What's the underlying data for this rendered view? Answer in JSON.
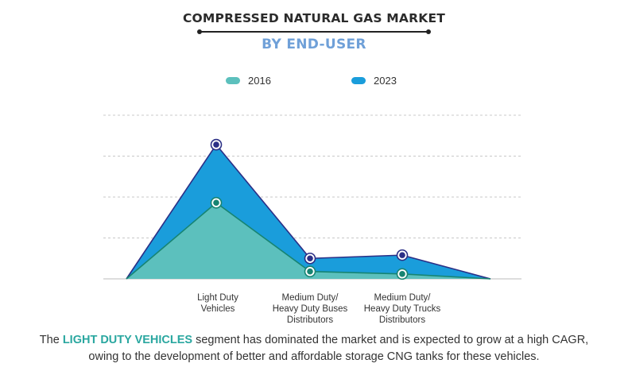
{
  "header": {
    "title": "COMPRESSED NATURAL GAS MARKET",
    "subtitle": "BY END-USER"
  },
  "caption": {
    "prefix": "The ",
    "highlight": "LIGHT DUTY VEHICLES",
    "suffix": " segment has dominated the market and is expected to grow at a high CAGR, owing to the development of better and affordable storage CNG tanks for these vehicles."
  },
  "chart_data": {
    "type": "area",
    "categories": [
      "Light Duty\nVehicles",
      "Medium Duty/\nHeavy Duty Buses\nDistributors",
      "Medium Duty/\nHeavy Duty Trucks\nDistributors"
    ],
    "series": [
      {
        "name": "2016",
        "color": "#5cc0bd",
        "line_color": "#178472",
        "values": [
          9.3,
          0.9,
          0.6
        ]
      },
      {
        "name": "2023",
        "color": "#1a9ddb",
        "line_color": "#2b2f86",
        "values": [
          16.4,
          2.5,
          2.9
        ]
      }
    ],
    "ylim": [
      0,
      20
    ],
    "grid": true,
    "legend_position": "top"
  }
}
